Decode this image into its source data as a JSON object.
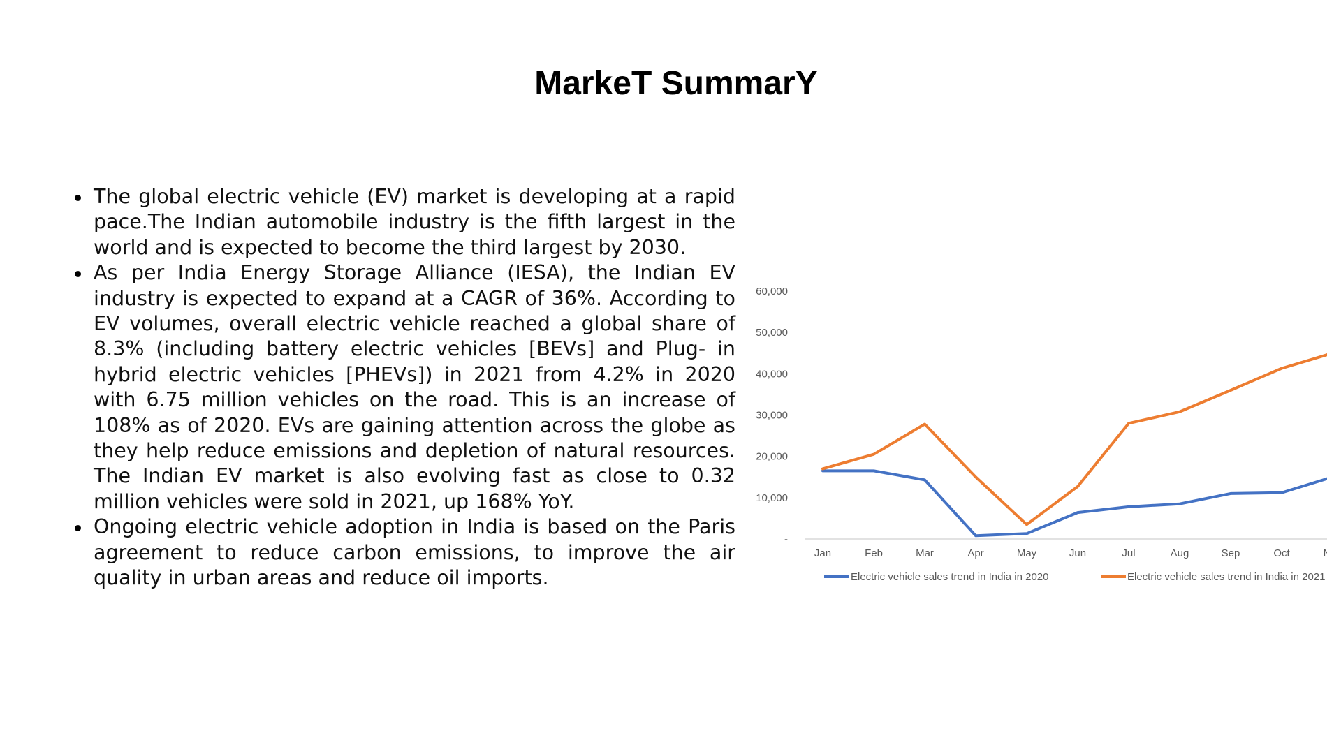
{
  "title": "MarkeT SummarY",
  "bullets": [
    "The global electric vehicle (EV) market is developing at a rapid pace.The Indian automobile industry is the fifth largest in the world and is expected to become the third largest by 2030.",
    "As per India Energy Storage Alliance (IESA), the Indian EV industry is expected to expand at a CAGR of 36%. According to EV volumes, overall electric vehicle reached a global share of 8.3% (including battery electric vehicles [BEVs] and Plug- in hybrid electric vehicles [PHEVs]) in 2021 from 4.2% in 2020 with 6.75 million vehicles on the road. This is an increase of 108% as of 2020. EVs are gaining attention across the globe as they help reduce emissions and depletion of natural resources. The Indian EV market is also evolving fast as close to 0.32 million vehicles were sold in 2021, up 168% YoY.",
    "Ongoing electric vehicle adoption in India is based on the Paris agreement to reduce carbon emissions, to improve the air quality in urban areas and reduce oil imports."
  ],
  "chart_data": {
    "type": "line",
    "categories": [
      "Jan",
      "Feb",
      "Mar",
      "Apr",
      "May",
      "Jun",
      "Jul",
      "Aug",
      "Sep",
      "Oct",
      "Nov"
    ],
    "yticks": [
      "-",
      "10,000",
      "20,000",
      "30,000",
      "40,000",
      "50,000",
      "60,000"
    ],
    "ylim": [
      0,
      60000
    ],
    "series": [
      {
        "name": "Electric vehicle sales trend in India in 2020",
        "color": "#4472C4",
        "values": [
          16500,
          16500,
          14300,
          800,
          1300,
          6400,
          7800,
          8500,
          11000,
          11200,
          15000
        ]
      },
      {
        "name": "Electric vehicle sales trend in India in 2021",
        "color": "#ED7D31",
        "values": [
          17000,
          20500,
          27800,
          15000,
          3500,
          12700,
          28000,
          30800,
          36000,
          41300,
          45000
        ]
      }
    ],
    "grid": false,
    "legend": "bottom"
  }
}
